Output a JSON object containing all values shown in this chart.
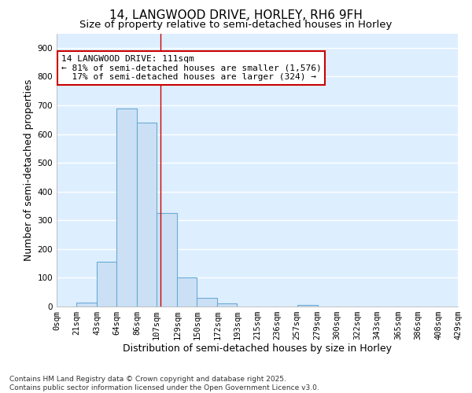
{
  "title_line1": "14, LANGWOOD DRIVE, HORLEY, RH6 9FH",
  "title_line2": "Size of property relative to semi-detached houses in Horley",
  "xlabel": "Distribution of semi-detached houses by size in Horley",
  "ylabel": "Number of semi-detached properties",
  "footer_line1": "Contains HM Land Registry data © Crown copyright and database right 2025.",
  "footer_line2": "Contains public sector information licensed under the Open Government Licence v3.0.",
  "annotation_title": "14 LANGWOOD DRIVE: 111sqm",
  "annotation_line1": "← 81% of semi-detached houses are smaller (1,576)",
  "annotation_line2": "17% of semi-detached houses are larger (324) →",
  "property_size": 111,
  "bar_labels": [
    "0sqm",
    "21sqm",
    "43sqm",
    "64sqm",
    "86sqm",
    "107sqm",
    "129sqm",
    "150sqm",
    "172sqm",
    "193sqm",
    "215sqm",
    "236sqm",
    "257sqm",
    "279sqm",
    "300sqm",
    "322sqm",
    "343sqm",
    "365sqm",
    "386sqm",
    "408sqm",
    "429sqm"
  ],
  "bar_edges": [
    0,
    21,
    43,
    64,
    86,
    107,
    129,
    150,
    172,
    193,
    215,
    236,
    257,
    279,
    300,
    322,
    343,
    365,
    386,
    408,
    429
  ],
  "bar_values": [
    0,
    15,
    155,
    690,
    640,
    325,
    100,
    30,
    12,
    0,
    0,
    0,
    5,
    0,
    0,
    0,
    0,
    0,
    0,
    0,
    0
  ],
  "bar_color": "#cce0f5",
  "bar_edge_color": "#6aaad4",
  "reference_line_x": 111,
  "reference_line_color": "#cc0000",
  "ylim": [
    0,
    950
  ],
  "xlim": [
    0,
    429
  ],
  "yticks": [
    0,
    100,
    200,
    300,
    400,
    500,
    600,
    700,
    800,
    900
  ],
  "background_color": "#ddeeff",
  "grid_color": "white",
  "annotation_box_facecolor": "white",
  "annotation_box_edgecolor": "#cc0000",
  "title_fontsize": 11,
  "subtitle_fontsize": 9.5,
  "axis_label_fontsize": 9,
  "tick_fontsize": 7.5,
  "annotation_fontsize": 8,
  "footer_fontsize": 6.5
}
